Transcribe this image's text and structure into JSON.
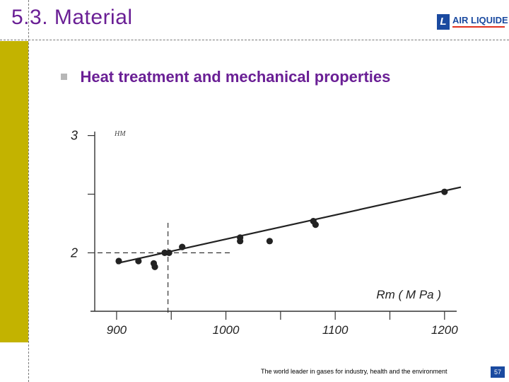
{
  "slide": {
    "title": "5.3. Material",
    "subtitle": "Heat treatment and mechanical properties",
    "footer": "The world leader in gases for industry, health and the environment",
    "page_number": "57"
  },
  "logo": {
    "text": "AIR LIQUIDE",
    "mark": "L",
    "colors": {
      "blue": "#1a4aa0",
      "red": "#e0301e"
    }
  },
  "colors": {
    "title": "#6a1f95",
    "side_bar": "#c3b300",
    "bullet": "#b7b7b7"
  },
  "chart_data": {
    "type": "scatter",
    "title": "",
    "xlabel": "Rm ( M Pa )",
    "ylabel": "HM",
    "xlim": [
      880,
      1215
    ],
    "ylim": [
      1.55,
      3.07
    ],
    "x_ticks": [
      900,
      950,
      1000,
      1050,
      1100,
      1150,
      1200
    ],
    "x_tick_labels": [
      "900",
      "",
      "1000",
      "",
      "1100",
      "",
      "1200"
    ],
    "y_ticks": [
      2.0,
      2.5,
      3.0
    ],
    "y_tick_labels": [
      "2",
      "",
      "3"
    ],
    "points": [
      {
        "x": 902,
        "y": 1.93
      },
      {
        "x": 920,
        "y": 1.93
      },
      {
        "x": 934,
        "y": 1.91
      },
      {
        "x": 935,
        "y": 1.88
      },
      {
        "x": 944,
        "y": 2.0
      },
      {
        "x": 948,
        "y": 2.0
      },
      {
        "x": 960,
        "y": 2.05
      },
      {
        "x": 1013,
        "y": 2.13
      },
      {
        "x": 1013,
        "y": 2.1
      },
      {
        "x": 1040,
        "y": 2.1
      },
      {
        "x": 1080,
        "y": 2.27
      },
      {
        "x": 1082,
        "y": 2.24
      },
      {
        "x": 1200,
        "y": 2.52
      }
    ],
    "fit_line": {
      "x": [
        900,
        1215
      ],
      "y": [
        1.91,
        2.56
      ]
    },
    "reference": {
      "x": 947,
      "y": 2.0
    }
  }
}
